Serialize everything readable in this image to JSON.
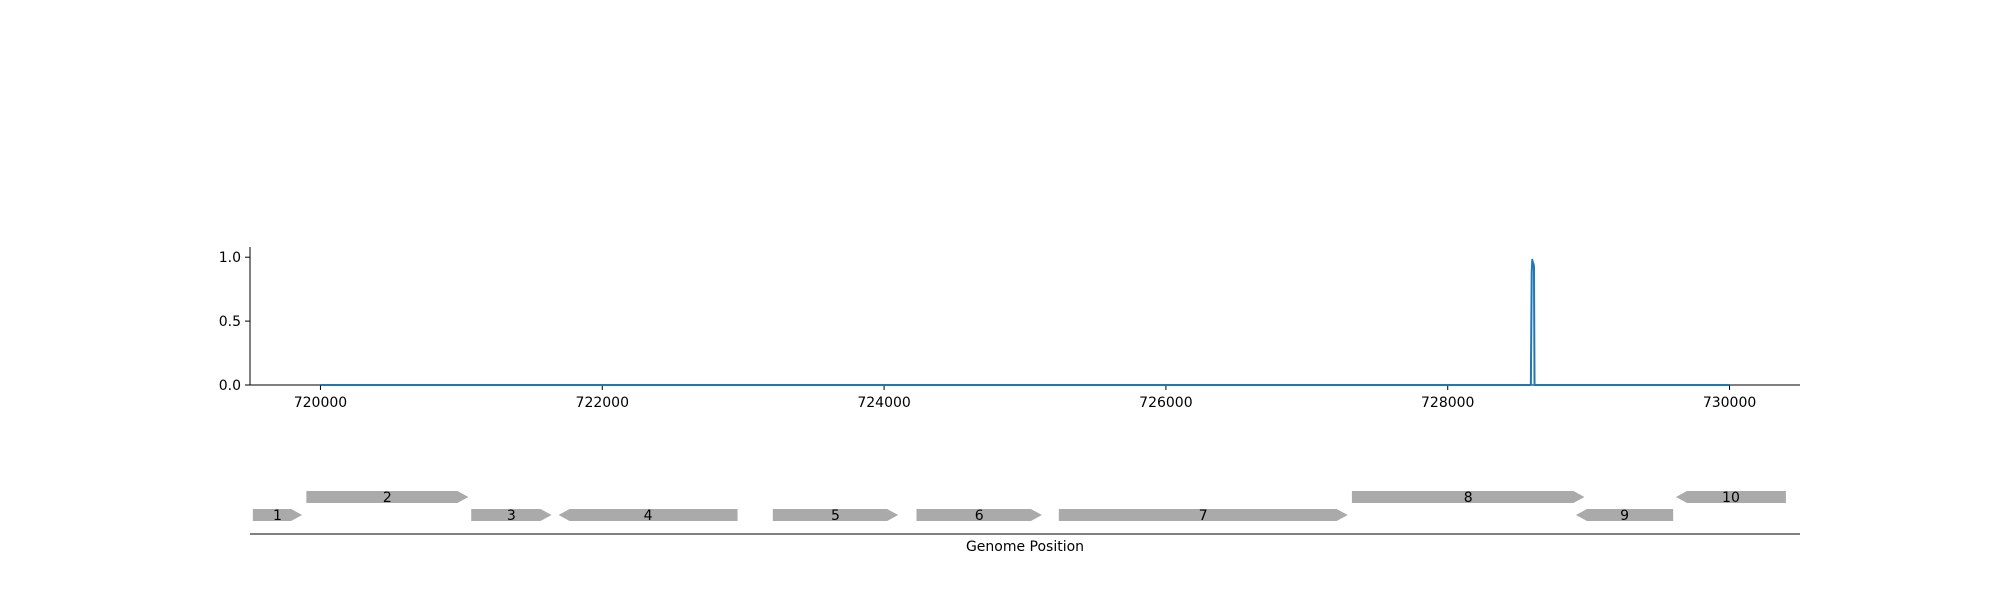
{
  "chart_data": {
    "type": "line",
    "title": "",
    "ylabel": "",
    "xlim": [
      719500,
      730500
    ],
    "ylim": [
      0,
      1.08
    ],
    "x_ticks": [
      720000,
      722000,
      724000,
      726000,
      728000,
      730000
    ],
    "x_tick_labels": [
      "720000",
      "722000",
      "724000",
      "726000",
      "728000",
      "730000"
    ],
    "y_ticks": [
      0.0,
      0.5,
      1.0
    ],
    "y_tick_labels": [
      "0.0",
      "0.5",
      "1.0"
    ],
    "grid": false,
    "colors": {
      "line": "#1f77b4",
      "gene": "#aaaaaa",
      "axis": "#000000"
    },
    "series": [
      {
        "x": [
          720000,
          728590,
          728596,
          728600,
          728604,
          728608,
          728612,
          728616,
          728620,
          730000
        ],
        "y": [
          0.0,
          0.0,
          0.88,
          0.98,
          0.96,
          0.95,
          0.93,
          0.0,
          0.0,
          0.0
        ]
      }
    ],
    "gene_track": {
      "xlabel": "Genome Position",
      "genes": [
        {
          "label": "1",
          "start": 719520,
          "end": 719870,
          "strand": "+",
          "row": 0
        },
        {
          "label": "2",
          "start": 719900,
          "end": 721050,
          "strand": "+",
          "row": 1
        },
        {
          "label": "3",
          "start": 721070,
          "end": 721640,
          "strand": "+",
          "row": 0
        },
        {
          "label": "4",
          "start": 721690,
          "end": 722960,
          "strand": "-",
          "row": 0
        },
        {
          "label": "5",
          "start": 723210,
          "end": 724100,
          "strand": "+",
          "row": 0
        },
        {
          "label": "6",
          "start": 724230,
          "end": 725120,
          "strand": "+",
          "row": 0
        },
        {
          "label": "7",
          "start": 725240,
          "end": 727290,
          "strand": "+",
          "row": 0
        },
        {
          "label": "8",
          "start": 727320,
          "end": 728970,
          "strand": "+",
          "row": 1
        },
        {
          "label": "9",
          "start": 728910,
          "end": 729600,
          "strand": "-",
          "row": 0
        },
        {
          "label": "10",
          "start": 729620,
          "end": 730400,
          "strand": "-",
          "row": 1
        }
      ]
    }
  }
}
